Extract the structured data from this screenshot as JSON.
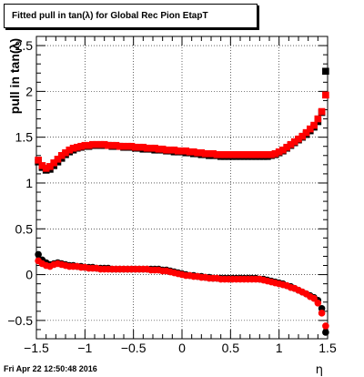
{
  "title": "Fitted pull in tan(λ) for Global Rec Pion EtapT",
  "timestamp": "Fri Apr 22 12:50:48 2016",
  "chart_data": {
    "type": "scatter",
    "title": "Fitted pull in tan(λ) for Global Rec Pion EtapT",
    "xlabel": "η",
    "ylabel": "pull in tan(λ)",
    "xlim": [
      -1.5,
      1.5
    ],
    "ylim": [
      -0.7,
      2.6
    ],
    "xticks": [
      "−1.5",
      "−1",
      "−0.5",
      "0",
      "0.5",
      "1",
      "1.5"
    ],
    "yticks": [
      "−0.5",
      "0",
      "0.5",
      "1",
      "1.5",
      "2",
      "2.5"
    ],
    "grid": true,
    "series": [
      {
        "color": "#000000",
        "marker": "square",
        "x": [
          -1.48,
          -1.44,
          -1.4,
          -1.36,
          -1.32,
          -1.28,
          -1.24,
          -1.2,
          -1.16,
          -1.12,
          -1.08,
          -1.04,
          -1.0,
          -0.96,
          -0.92,
          -0.88,
          -0.84,
          -0.8,
          -0.76,
          -0.72,
          -0.68,
          -0.64,
          -0.6,
          -0.56,
          -0.52,
          -0.48,
          -0.44,
          -0.4,
          -0.36,
          -0.32,
          -0.28,
          -0.24,
          -0.2,
          -0.16,
          -0.12,
          -0.08,
          -0.04,
          0.0,
          0.04,
          0.08,
          0.12,
          0.16,
          0.2,
          0.24,
          0.28,
          0.32,
          0.36,
          0.4,
          0.44,
          0.48,
          0.52,
          0.56,
          0.6,
          0.64,
          0.68,
          0.72,
          0.76,
          0.8,
          0.84,
          0.88,
          0.92,
          0.96,
          1.0,
          1.04,
          1.08,
          1.12,
          1.16,
          1.2,
          1.24,
          1.28,
          1.32,
          1.36,
          1.4,
          1.44,
          1.48
        ],
        "y": [
          1.23,
          1.17,
          1.14,
          1.15,
          1.19,
          1.23,
          1.27,
          1.31,
          1.34,
          1.36,
          1.38,
          1.39,
          1.4,
          1.4,
          1.41,
          1.41,
          1.41,
          1.41,
          1.41,
          1.4,
          1.4,
          1.4,
          1.39,
          1.39,
          1.39,
          1.38,
          1.38,
          1.37,
          1.37,
          1.37,
          1.36,
          1.36,
          1.36,
          1.35,
          1.35,
          1.34,
          1.34,
          1.34,
          1.33,
          1.33,
          1.32,
          1.32,
          1.31,
          1.31,
          1.3,
          1.3,
          1.3,
          1.29,
          1.29,
          1.29,
          1.29,
          1.29,
          1.29,
          1.29,
          1.29,
          1.29,
          1.29,
          1.29,
          1.29,
          1.29,
          1.3,
          1.31,
          1.33,
          1.35,
          1.38,
          1.41,
          1.44,
          1.47,
          1.5,
          1.53,
          1.57,
          1.61,
          1.67,
          1.77,
          2.22
        ]
      },
      {
        "color": "#ff0000",
        "marker": "square",
        "x": [
          -1.48,
          -1.44,
          -1.4,
          -1.36,
          -1.32,
          -1.28,
          -1.24,
          -1.2,
          -1.16,
          -1.12,
          -1.08,
          -1.04,
          -1.0,
          -0.96,
          -0.92,
          -0.88,
          -0.84,
          -0.8,
          -0.76,
          -0.72,
          -0.68,
          -0.64,
          -0.6,
          -0.56,
          -0.52,
          -0.48,
          -0.44,
          -0.4,
          -0.36,
          -0.32,
          -0.28,
          -0.24,
          -0.2,
          -0.16,
          -0.12,
          -0.08,
          -0.04,
          0.0,
          0.04,
          0.08,
          0.12,
          0.16,
          0.2,
          0.24,
          0.28,
          0.32,
          0.36,
          0.4,
          0.44,
          0.48,
          0.52,
          0.56,
          0.6,
          0.64,
          0.68,
          0.72,
          0.76,
          0.8,
          0.84,
          0.88,
          0.92,
          0.96,
          1.0,
          1.04,
          1.08,
          1.12,
          1.16,
          1.2,
          1.24,
          1.28,
          1.32,
          1.36,
          1.4,
          1.44,
          1.48
        ],
        "y": [
          1.25,
          1.19,
          1.16,
          1.18,
          1.22,
          1.26,
          1.3,
          1.33,
          1.36,
          1.38,
          1.39,
          1.4,
          1.41,
          1.41,
          1.42,
          1.42,
          1.42,
          1.42,
          1.41,
          1.41,
          1.41,
          1.4,
          1.4,
          1.4,
          1.4,
          1.39,
          1.39,
          1.39,
          1.38,
          1.38,
          1.38,
          1.37,
          1.37,
          1.36,
          1.36,
          1.36,
          1.35,
          1.35,
          1.35,
          1.34,
          1.34,
          1.33,
          1.33,
          1.32,
          1.32,
          1.32,
          1.31,
          1.31,
          1.31,
          1.31,
          1.31,
          1.31,
          1.31,
          1.31,
          1.31,
          1.31,
          1.31,
          1.31,
          1.31,
          1.31,
          1.31,
          1.32,
          1.34,
          1.36,
          1.39,
          1.42,
          1.45,
          1.48,
          1.51,
          1.55,
          1.59,
          1.63,
          1.7,
          1.78,
          1.96
        ]
      },
      {
        "color": "#000000",
        "marker": "circle",
        "x": [
          -1.48,
          -1.44,
          -1.4,
          -1.36,
          -1.32,
          -1.28,
          -1.24,
          -1.2,
          -1.16,
          -1.12,
          -1.08,
          -1.04,
          -1.0,
          -0.96,
          -0.92,
          -0.88,
          -0.84,
          -0.8,
          -0.76,
          -0.72,
          -0.68,
          -0.64,
          -0.6,
          -0.56,
          -0.52,
          -0.48,
          -0.44,
          -0.4,
          -0.36,
          -0.32,
          -0.28,
          -0.24,
          -0.2,
          -0.16,
          -0.12,
          -0.08,
          -0.04,
          0.0,
          0.04,
          0.08,
          0.12,
          0.16,
          0.2,
          0.24,
          0.28,
          0.32,
          0.36,
          0.4,
          0.44,
          0.48,
          0.52,
          0.56,
          0.6,
          0.64,
          0.68,
          0.72,
          0.76,
          0.8,
          0.84,
          0.88,
          0.92,
          0.96,
          1.0,
          1.04,
          1.08,
          1.12,
          1.16,
          1.2,
          1.24,
          1.28,
          1.32,
          1.36,
          1.4,
          1.44,
          1.48
        ],
        "y": [
          0.22,
          0.16,
          0.13,
          0.11,
          0.12,
          0.13,
          0.12,
          0.11,
          0.1,
          0.1,
          0.09,
          0.09,
          0.08,
          0.08,
          0.08,
          0.07,
          0.07,
          0.07,
          0.07,
          0.06,
          0.06,
          0.06,
          0.06,
          0.06,
          0.06,
          0.06,
          0.06,
          0.06,
          0.06,
          0.06,
          0.06,
          0.06,
          0.05,
          0.05,
          0.04,
          0.03,
          0.02,
          0.01,
          0.0,
          -0.01,
          -0.01,
          -0.02,
          -0.02,
          -0.03,
          -0.03,
          -0.04,
          -0.04,
          -0.04,
          -0.04,
          -0.04,
          -0.04,
          -0.04,
          -0.04,
          -0.04,
          -0.04,
          -0.04,
          -0.04,
          -0.05,
          -0.05,
          -0.06,
          -0.07,
          -0.08,
          -0.09,
          -0.1,
          -0.12,
          -0.13,
          -0.15,
          -0.17,
          -0.19,
          -0.21,
          -0.23,
          -0.25,
          -0.28,
          -0.37,
          -0.63
        ]
      },
      {
        "color": "#ff0000",
        "marker": "circle",
        "x": [
          -1.48,
          -1.44,
          -1.4,
          -1.36,
          -1.32,
          -1.28,
          -1.24,
          -1.2,
          -1.16,
          -1.12,
          -1.08,
          -1.04,
          -1.0,
          -0.96,
          -0.92,
          -0.88,
          -0.84,
          -0.8,
          -0.76,
          -0.72,
          -0.68,
          -0.64,
          -0.6,
          -0.56,
          -0.52,
          -0.48,
          -0.44,
          -0.4,
          -0.36,
          -0.32,
          -0.28,
          -0.24,
          -0.2,
          -0.16,
          -0.12,
          -0.08,
          -0.04,
          0.0,
          0.04,
          0.08,
          0.12,
          0.16,
          0.2,
          0.24,
          0.28,
          0.32,
          0.36,
          0.4,
          0.44,
          0.48,
          0.52,
          0.56,
          0.6,
          0.64,
          0.68,
          0.72,
          0.76,
          0.8,
          0.84,
          0.88,
          0.92,
          0.96,
          1.0,
          1.04,
          1.08,
          1.12,
          1.16,
          1.2,
          1.24,
          1.28,
          1.32,
          1.36,
          1.4,
          1.44,
          1.48
        ],
        "y": [
          0.15,
          0.12,
          0.1,
          0.09,
          0.11,
          0.12,
          0.11,
          0.1,
          0.09,
          0.09,
          0.09,
          0.08,
          0.08,
          0.07,
          0.07,
          0.07,
          0.06,
          0.06,
          0.06,
          0.06,
          0.06,
          0.06,
          0.06,
          0.06,
          0.06,
          0.06,
          0.06,
          0.06,
          0.06,
          0.05,
          0.05,
          0.05,
          0.04,
          0.04,
          0.03,
          0.02,
          0.01,
          0.0,
          -0.01,
          -0.01,
          -0.02,
          -0.02,
          -0.03,
          -0.03,
          -0.04,
          -0.04,
          -0.04,
          -0.05,
          -0.05,
          -0.05,
          -0.05,
          -0.05,
          -0.05,
          -0.05,
          -0.05,
          -0.05,
          -0.05,
          -0.05,
          -0.06,
          -0.07,
          -0.08,
          -0.09,
          -0.1,
          -0.11,
          -0.12,
          -0.14,
          -0.15,
          -0.17,
          -0.19,
          -0.21,
          -0.24,
          -0.26,
          -0.31,
          -0.42,
          -0.56
        ]
      }
    ]
  }
}
